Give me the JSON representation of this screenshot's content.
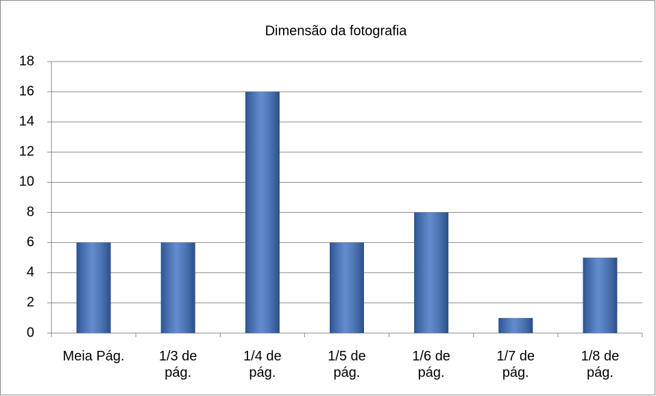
{
  "chart_data": {
    "type": "bar",
    "title": "Dimensão da fotografia",
    "categories": [
      "Meia Pág.",
      "1/3 de pág.",
      "1/4 de pág.",
      "1/5 de pág.",
      "1/6 de pág.",
      "1/7 de pág.",
      "1/8 de pág."
    ],
    "values": [
      6,
      6,
      16,
      6,
      8,
      1,
      5
    ],
    "color": "#3b6fc2",
    "ylim": [
      0,
      18
    ],
    "yticks": [
      0,
      2,
      4,
      6,
      8,
      10,
      12,
      14,
      16,
      18
    ],
    "grid": true
  }
}
